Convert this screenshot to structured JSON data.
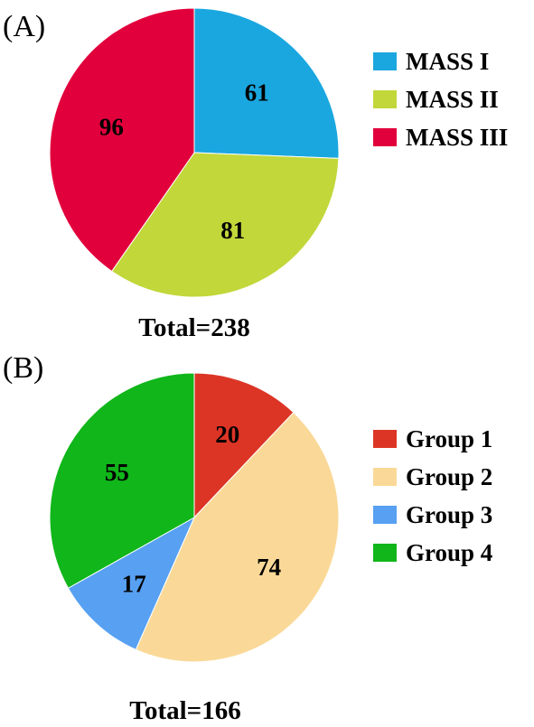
{
  "chart_data": [
    {
      "type": "pie",
      "panel_label": "(A)",
      "total_label": "Total=238",
      "start_angle_deg": 0,
      "direction": "clockwise",
      "categories": [
        "MASS I",
        "MASS II",
        "MASS III"
      ],
      "values": [
        61,
        81,
        96
      ],
      "colors": [
        "#1aa7df",
        "#c2d73a",
        "#e2003c"
      ],
      "legend": {
        "position": "right",
        "entries": [
          "MASS I",
          "MASS II",
          "MASS III"
        ]
      }
    },
    {
      "type": "pie",
      "panel_label": "(B)",
      "total_label": "Total=166",
      "start_angle_deg": 0,
      "direction": "clockwise",
      "categories": [
        "Group 1",
        "Group 2",
        "Group 3",
        "Group 4"
      ],
      "values": [
        20,
        74,
        17,
        55
      ],
      "colors": [
        "#dc3526",
        "#fad998",
        "#57a0f2",
        "#10b61a"
      ],
      "legend": {
        "position": "right",
        "entries": [
          "Group 1",
          "Group 2",
          "Group 3",
          "Group 4"
        ]
      }
    }
  ]
}
